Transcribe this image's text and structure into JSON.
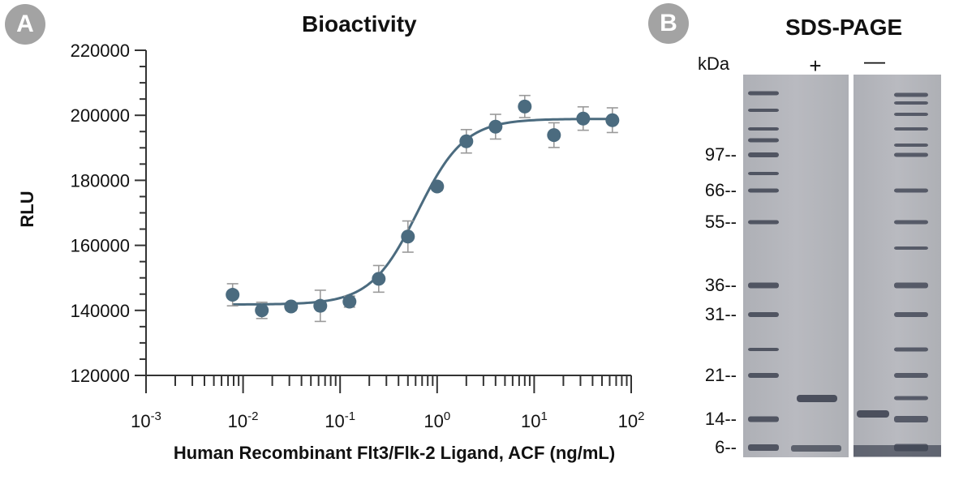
{
  "panels": {
    "a_label": "A",
    "b_label": "B"
  },
  "chart_data": {
    "type": "scatter",
    "title": "Bioactivity",
    "xlabel": "Human Recombinant Flt3/Flk-2 Ligand, ACF (ng/mL)",
    "ylabel": "RLU",
    "xscale": "log",
    "xlim": [
      0.001,
      100
    ],
    "ylim": [
      120000,
      220000
    ],
    "yticks": [
      120000,
      140000,
      160000,
      180000,
      200000,
      220000
    ],
    "ytick_labels": [
      "120000",
      "140000",
      "160000",
      "180000",
      "200000",
      "220000"
    ],
    "xticks": [
      {
        "base": "10",
        "exp": "-3",
        "value": 0.001
      },
      {
        "base": "10",
        "exp": "-2",
        "value": 0.01
      },
      {
        "base": "10",
        "exp": "-1",
        "value": 0.1
      },
      {
        "base": "10",
        "exp": "0",
        "value": 1
      },
      {
        "base": "10",
        "exp": "1",
        "value": 10
      },
      {
        "base": "10",
        "exp": "2",
        "value": 100
      }
    ],
    "series": [
      {
        "name": "data",
        "x": [
          0.0078,
          0.0156,
          0.03125,
          0.0625,
          0.125,
          0.25,
          0.5,
          1,
          2,
          4,
          8,
          16,
          32,
          64
        ],
        "y": [
          144800,
          140000,
          141200,
          141400,
          142700,
          149700,
          162700,
          178100,
          192000,
          196500,
          202700,
          193900,
          199000,
          198500
        ],
        "err": [
          3400,
          2500,
          1200,
          4800,
          1700,
          4100,
          4800,
          1200,
          3600,
          3800,
          3400,
          3800,
          3600,
          3800
        ]
      }
    ],
    "fit": {
      "type": "4PL",
      "bottom": 141800,
      "top": 198900,
      "ec50": 0.63,
      "hill": 1.8
    },
    "colors": {
      "point": "#4b6b7f",
      "line": "#4b6b7f",
      "error": "#9a9a9a",
      "axis": "#333333"
    }
  },
  "gel": {
    "title": "SDS-PAGE",
    "kda_label": "kDa",
    "lane_labels": [
      "+",
      "—"
    ],
    "markers": [
      "97--",
      "66--",
      "55--",
      "36--",
      "31--",
      "21--",
      "14--",
      "6--"
    ],
    "marker_values": [
      97,
      66,
      55,
      36,
      31,
      21,
      14,
      6
    ],
    "background_color": "#b4b5bb",
    "band_color": "#3f4452"
  }
}
